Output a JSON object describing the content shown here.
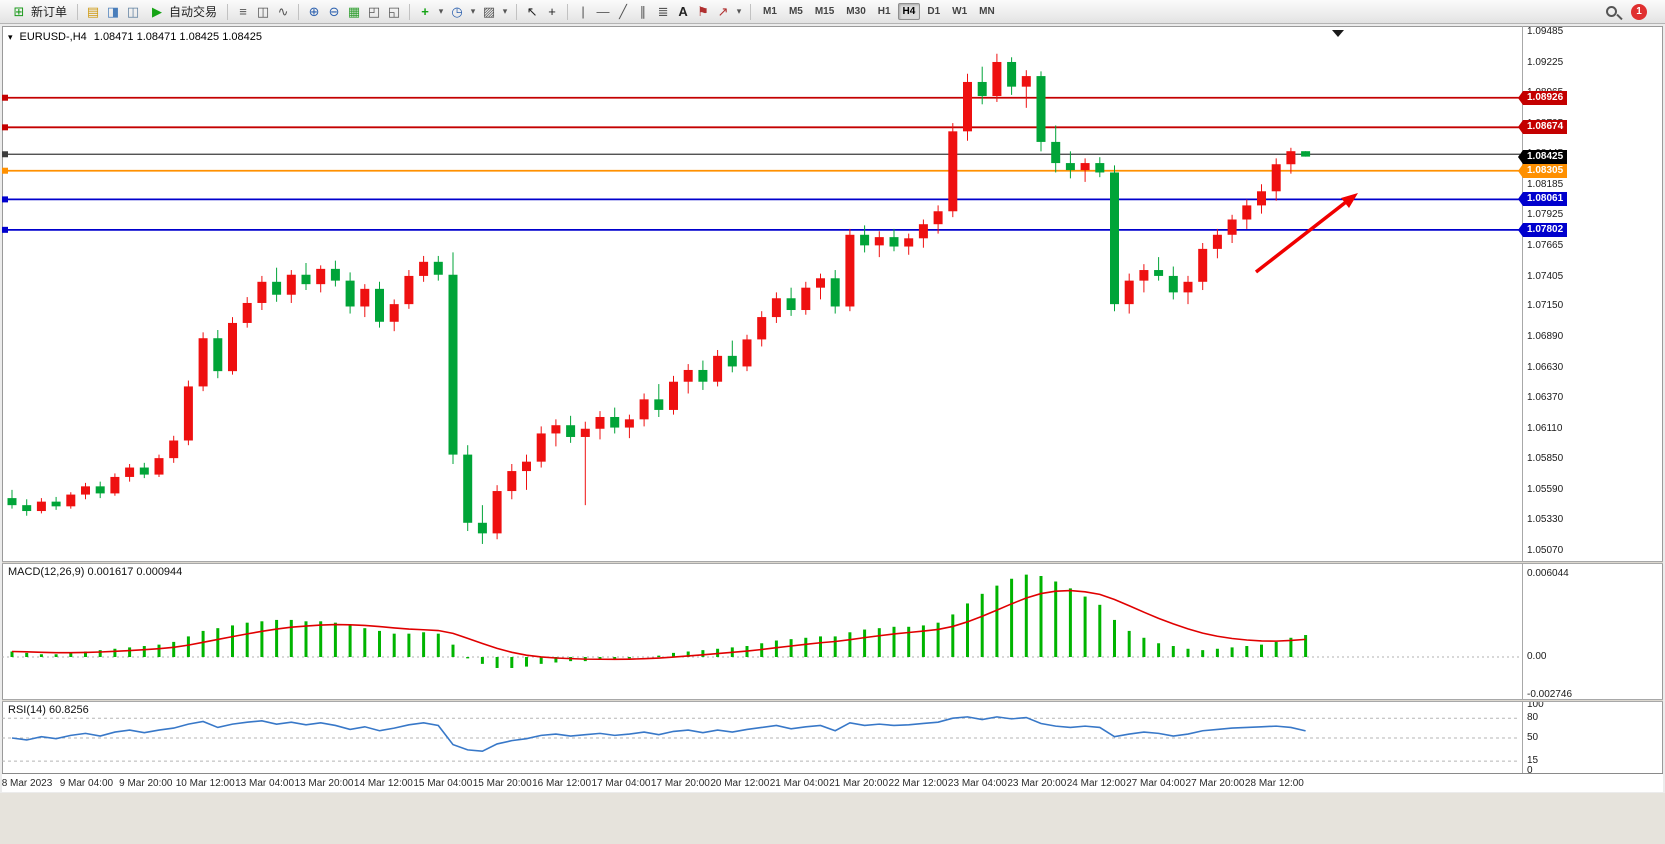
{
  "toolbar": {
    "new_order_label": "新订单",
    "auto_trading_label": "自动交易",
    "timeframes": [
      "M1",
      "M5",
      "M15",
      "M30",
      "H1",
      "H4",
      "D1",
      "W1",
      "MN"
    ],
    "active_timeframe": "H4",
    "notification_count": "1",
    "icons": {
      "new_order": "⊞",
      "market_watch": "▤",
      "navigator": "◨",
      "terminal": "◫",
      "auto_trading": "▶",
      "bar_chart": "≡",
      "candle_chart": "◫",
      "line_chart": "∿",
      "zoom_in": "⊕",
      "zoom_out": "⊖",
      "tile_windows": "▦",
      "window_a": "◰",
      "window_b": "◱",
      "add_indicator": "+",
      "clock": "◷",
      "template": "▨",
      "cursor": "↖",
      "crosshair": "+",
      "vline": "|",
      "hline": "—",
      "trendline": "╱",
      "channel": "∥",
      "fibonacci": "≣",
      "text_tool": "A",
      "label_tool": "⚑",
      "arrow_tool": "↗",
      "dropdown": "▾"
    }
  },
  "chart": {
    "collapse_icon": "▾",
    "symbol": "EURUSD-,H4",
    "ohlc_line": "1.08471 1.08471 1.08425 1.08425",
    "price_max": 1.09485,
    "price_min": 1.0507,
    "price_axis_labels": [
      "1.09485",
      "1.09225",
      "1.08965",
      "1.08705",
      "1.08445",
      "1.08185",
      "1.07925",
      "1.07665",
      "1.07405",
      "1.07150",
      "1.06890",
      "1.06630",
      "1.06370",
      "1.06110",
      "1.05850",
      "1.05590",
      "1.05330",
      "1.05070"
    ],
    "levels": [
      {
        "price": 1.08926,
        "label": "1.08926",
        "color": "#c40000",
        "width": 1.8,
        "type": "resistance"
      },
      {
        "price": 1.08674,
        "label": "1.08674",
        "color": "#c40000",
        "width": 1.8,
        "type": "resistance"
      },
      {
        "price": 1.08445,
        "label": "",
        "color": "#3c3c3c",
        "width": 1.2,
        "type": "hline"
      },
      {
        "price": 1.08305,
        "label": "1.08305",
        "color": "#ff9000",
        "width": 1.8,
        "type": "pivot"
      },
      {
        "price": 1.08061,
        "label": "1.08061",
        "color": "#0000cd",
        "width": 1.8,
        "type": "support"
      },
      {
        "price": 1.07802,
        "label": "1.07802",
        "color": "#0000cd",
        "width": 1.8,
        "type": "support"
      }
    ],
    "current_price": {
      "label": "1.08425",
      "color": "#000000"
    },
    "annotation_arrow": {
      "color": "#f00000",
      "from": [
        1256,
        272
      ],
      "to": [
        1352,
        197
      ]
    }
  },
  "macd_panel": {
    "label": "MACD(12,26,9) 0.001617 0.000944",
    "axis": [
      "0.006044",
      "0.00",
      "-0.002746"
    ]
  },
  "rsi_panel": {
    "label": "RSI(14) 60.8256",
    "axis": [
      "100",
      "80",
      "50",
      "15",
      "0"
    ]
  },
  "time_axis": [
    "8 Mar 2023",
    "9 Mar 04:00",
    "9 Mar 20:00",
    "10 Mar 12:00",
    "13 Mar 04:00",
    "13 Mar 20:00",
    "14 Mar 12:00",
    "15 Mar 04:00",
    "15 Mar 20:00",
    "16 Mar 12:00",
    "17 Mar 04:00",
    "17 Mar 20:00",
    "20 Mar 12:00",
    "21 Mar 04:00",
    "21 Mar 20:00",
    "22 Mar 12:00",
    "23 Mar 04:00",
    "23 Mar 20:00",
    "24 Mar 12:00",
    "27 Mar 04:00",
    "27 Mar 20:00",
    "28 Mar 12:00"
  ],
  "chart_data": [
    {
      "type": "candlestick",
      "title": "EURUSD- H4",
      "up_color": "#ee1010",
      "down_color": "#00a438",
      "ylim": [
        1.0507,
        1.09485
      ],
      "ohlc": [
        [
          1.0552,
          1.0559,
          1.0543,
          1.0546
        ],
        [
          1.0546,
          1.0551,
          1.0537,
          1.0541
        ],
        [
          1.0541,
          1.0552,
          1.0539,
          1.0549
        ],
        [
          1.0549,
          1.0553,
          1.0542,
          1.0545
        ],
        [
          1.0545,
          1.0557,
          1.0543,
          1.0555
        ],
        [
          1.0555,
          1.0565,
          1.0551,
          1.0562
        ],
        [
          1.0562,
          1.0566,
          1.0552,
          1.0556
        ],
        [
          1.0556,
          1.0573,
          1.0554,
          1.057
        ],
        [
          1.057,
          1.0581,
          1.0566,
          1.0578
        ],
        [
          1.0578,
          1.0582,
          1.0569,
          1.0572
        ],
        [
          1.0572,
          1.0589,
          1.057,
          1.0586
        ],
        [
          1.0586,
          1.0605,
          1.0582,
          1.0601
        ],
        [
          1.0601,
          1.0652,
          1.0597,
          1.0647
        ],
        [
          1.0647,
          1.0693,
          1.0643,
          1.0688
        ],
        [
          1.0688,
          1.0695,
          1.0654,
          1.066
        ],
        [
          1.066,
          1.0706,
          1.0657,
          1.0701
        ],
        [
          1.0701,
          1.0723,
          1.0697,
          1.0718
        ],
        [
          1.0718,
          1.0741,
          1.0712,
          1.0736
        ],
        [
          1.0736,
          1.0748,
          1.0719,
          1.0725
        ],
        [
          1.0725,
          1.0746,
          1.0718,
          1.0742
        ],
        [
          1.0742,
          1.0752,
          1.0729,
          1.0734
        ],
        [
          1.0734,
          1.075,
          1.0727,
          1.0747
        ],
        [
          1.0747,
          1.0754,
          1.0732,
          1.0737
        ],
        [
          1.0737,
          1.0744,
          1.0709,
          1.0715
        ],
        [
          1.0715,
          1.0734,
          1.0706,
          1.073
        ],
        [
          1.073,
          1.0736,
          1.0697,
          1.0702
        ],
        [
          1.0702,
          1.0721,
          1.0694,
          1.0717
        ],
        [
          1.0717,
          1.0746,
          1.0713,
          1.0741
        ],
        [
          1.0741,
          1.0758,
          1.0736,
          1.0753
        ],
        [
          1.0753,
          1.0758,
          1.0737,
          1.0742
        ],
        [
          1.0742,
          1.0761,
          1.0581,
          1.0589
        ],
        [
          1.0589,
          1.0597,
          1.0524,
          1.0531
        ],
        [
          1.0531,
          1.0546,
          1.0513,
          1.0522
        ],
        [
          1.0522,
          1.0563,
          1.0517,
          1.0558
        ],
        [
          1.0558,
          1.0581,
          1.0551,
          1.0575
        ],
        [
          1.0575,
          1.0589,
          1.0559,
          1.0583
        ],
        [
          1.0583,
          1.0613,
          1.0578,
          1.0607
        ],
        [
          1.0607,
          1.0619,
          1.0596,
          1.0614
        ],
        [
          1.0614,
          1.0622,
          1.0599,
          1.0604
        ],
        [
          1.0604,
          1.0617,
          1.0546,
          1.0611
        ],
        [
          1.0611,
          1.0626,
          1.0602,
          1.0621
        ],
        [
          1.0621,
          1.0629,
          1.0607,
          1.0612
        ],
        [
          1.0612,
          1.0623,
          1.0603,
          1.0619
        ],
        [
          1.0619,
          1.0641,
          1.0613,
          1.0636
        ],
        [
          1.0636,
          1.0649,
          1.0621,
          1.0627
        ],
        [
          1.0627,
          1.0656,
          1.0623,
          1.0651
        ],
        [
          1.0651,
          1.0666,
          1.0641,
          1.0661
        ],
        [
          1.0661,
          1.0669,
          1.0644,
          1.0651
        ],
        [
          1.0651,
          1.0678,
          1.0647,
          1.0673
        ],
        [
          1.0673,
          1.0686,
          1.0659,
          1.0664
        ],
        [
          1.0664,
          1.0691,
          1.066,
          1.0687
        ],
        [
          1.0687,
          1.0711,
          1.0681,
          1.0706
        ],
        [
          1.0706,
          1.0727,
          1.0701,
          1.0722
        ],
        [
          1.0722,
          1.0731,
          1.0707,
          1.0712
        ],
        [
          1.0712,
          1.0736,
          1.0708,
          1.0731
        ],
        [
          1.0731,
          1.0743,
          1.0721,
          1.0739
        ],
        [
          1.0739,
          1.0746,
          1.0709,
          1.0715
        ],
        [
          1.0715,
          1.0781,
          1.0711,
          1.0776
        ],
        [
          1.0776,
          1.0784,
          1.0761,
          1.0767
        ],
        [
          1.0767,
          1.0779,
          1.0757,
          1.0774
        ],
        [
          1.0774,
          1.0781,
          1.0762,
          1.0766
        ],
        [
          1.0766,
          1.0777,
          1.0759,
          1.0773
        ],
        [
          1.0773,
          1.0789,
          1.0765,
          1.0785
        ],
        [
          1.0785,
          1.0801,
          1.0777,
          1.0796
        ],
        [
          1.0796,
          1.0871,
          1.0791,
          1.0864
        ],
        [
          1.0864,
          1.0913,
          1.0856,
          1.0906
        ],
        [
          1.0906,
          1.0919,
          1.0887,
          1.0894
        ],
        [
          1.0894,
          1.093,
          1.0889,
          1.0923
        ],
        [
          1.0923,
          1.0927,
          1.0895,
          1.0902
        ],
        [
          1.0902,
          1.0916,
          1.0884,
          1.0911
        ],
        [
          1.0911,
          1.0915,
          1.0847,
          1.0855
        ],
        [
          1.0855,
          1.0869,
          1.0829,
          1.0837
        ],
        [
          1.0837,
          1.0847,
          1.0824,
          1.0831
        ],
        [
          1.0831,
          1.0841,
          1.0821,
          1.0837
        ],
        [
          1.0837,
          1.0842,
          1.0825,
          1.0829
        ],
        [
          1.0829,
          1.0835,
          1.0711,
          1.0717
        ],
        [
          1.0717,
          1.0743,
          1.0709,
          1.0737
        ],
        [
          1.0737,
          1.0751,
          1.0727,
          1.0746
        ],
        [
          1.0746,
          1.0757,
          1.0737,
          1.0741
        ],
        [
          1.0741,
          1.0749,
          1.0721,
          1.0727
        ],
        [
          1.0727,
          1.0741,
          1.0717,
          1.0736
        ],
        [
          1.0736,
          1.0769,
          1.0729,
          1.0764
        ],
        [
          1.0764,
          1.0781,
          1.0756,
          1.0776
        ],
        [
          1.0776,
          1.0793,
          1.0769,
          1.0789
        ],
        [
          1.0789,
          1.0806,
          1.0781,
          1.0801
        ],
        [
          1.0801,
          1.0819,
          1.0794,
          1.0813
        ],
        [
          1.0813,
          1.0841,
          1.0805,
          1.0836
        ],
        [
          1.0836,
          1.085,
          1.0828,
          1.08471
        ],
        [
          1.08471,
          1.08471,
          1.08425,
          1.08425
        ]
      ]
    },
    {
      "type": "bar",
      "title": "MACD(12,26,9)",
      "color": "#00b400",
      "signal_color": "#e00000",
      "ylim": [
        -0.002746,
        0.006044
      ],
      "values": [
        0.0004,
        0.0003,
        0.0002,
        0.0002,
        0.0003,
        0.0004,
        0.0005,
        0.0006,
        0.0007,
        0.0008,
        0.0009,
        0.0011,
        0.0015,
        0.0019,
        0.0021,
        0.0023,
        0.0025,
        0.0026,
        0.0027,
        0.0027,
        0.0026,
        0.0026,
        0.0025,
        0.0023,
        0.0021,
        0.0019,
        0.0017,
        0.0017,
        0.0018,
        0.0017,
        0.0009,
        -0.0001,
        -0.0005,
        -0.0008,
        -0.0008,
        -0.0007,
        -0.0005,
        -0.0004,
        -0.0003,
        -0.0003,
        -0.0002,
        -0.0002,
        -0.0001,
        0.0,
        0.0001,
        0.0003,
        0.0004,
        0.0005,
        0.0006,
        0.0007,
        0.0008,
        0.001,
        0.0012,
        0.0013,
        0.0014,
        0.0015,
        0.0015,
        0.0018,
        0.002,
        0.0021,
        0.0022,
        0.0022,
        0.0023,
        0.0025,
        0.0031,
        0.0039,
        0.0046,
        0.0052,
        0.0057,
        0.006,
        0.0059,
        0.0055,
        0.005,
        0.0044,
        0.0038,
        0.0027,
        0.0019,
        0.0014,
        0.001,
        0.0008,
        0.0006,
        0.0005,
        0.0006,
        0.0007,
        0.0008,
        0.0009,
        0.0011,
        0.0014,
        0.0016
      ]
    },
    {
      "type": "line",
      "title": "RSI(14)",
      "color": "#3878c8",
      "ylim": [
        0,
        100
      ],
      "levels": [
        80,
        50,
        15
      ],
      "values": [
        50,
        47,
        52,
        49,
        54,
        57,
        53,
        59,
        62,
        58,
        62,
        65,
        71,
        75,
        66,
        71,
        74,
        76,
        71,
        74,
        70,
        73,
        69,
        63,
        67,
        61,
        65,
        70,
        73,
        69,
        40,
        32,
        30,
        41,
        46,
        49,
        54,
        56,
        53,
        55,
        57,
        54,
        56,
        59,
        55,
        60,
        62,
        58,
        62,
        59,
        63,
        66,
        69,
        64,
        67,
        69,
        61,
        73,
        69,
        71,
        69,
        70,
        72,
        74,
        80,
        82,
        78,
        82,
        79,
        81,
        72,
        68,
        66,
        68,
        66,
        52,
        56,
        59,
        57,
        53,
        56,
        61,
        63,
        65,
        66,
        67,
        68,
        66,
        60.8
      ]
    }
  ]
}
